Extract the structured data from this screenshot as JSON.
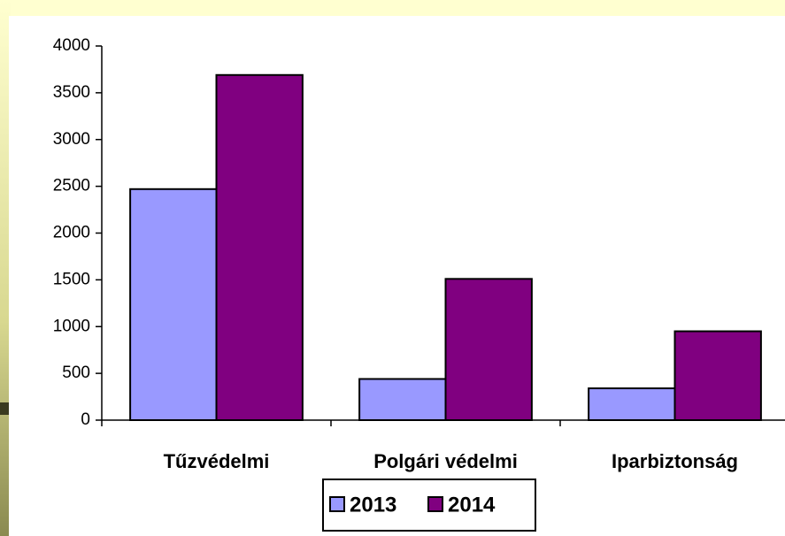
{
  "chart_data": {
    "type": "bar",
    "categories": [
      "Tűzvédelmi",
      "Polgári védelmi",
      "Iparbiztonság"
    ],
    "series": [
      {
        "name": "2013",
        "color": "#9999ff",
        "values": [
          2470,
          440,
          340
        ]
      },
      {
        "name": "2014",
        "color": "#800080",
        "values": [
          3690,
          1510,
          950
        ]
      }
    ],
    "ylim": [
      0,
      4000
    ],
    "yticks": [
      0,
      500,
      1000,
      1500,
      2000,
      2500,
      3000,
      3500,
      4000
    ]
  }
}
